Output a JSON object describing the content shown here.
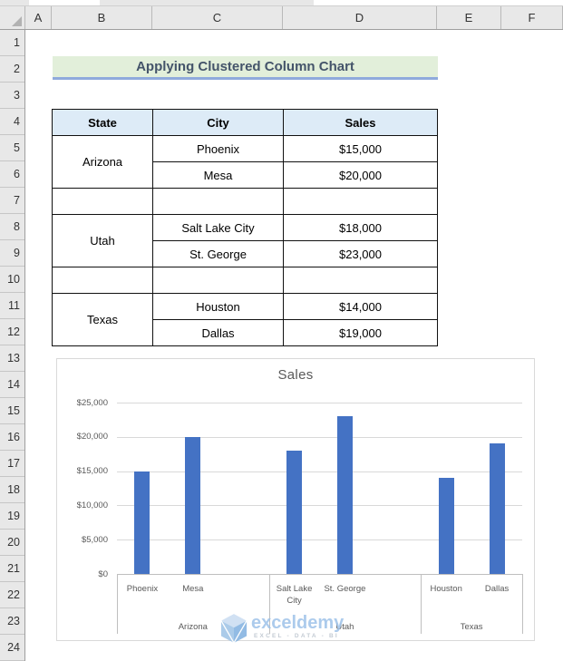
{
  "spreadsheet": {
    "column_headers": [
      "A",
      "B",
      "C",
      "D",
      "E",
      "F"
    ],
    "row_numbers": [
      "1",
      "2",
      "3",
      "4",
      "5",
      "6",
      "7",
      "8",
      "9",
      "10",
      "11",
      "12",
      "13",
      "14",
      "15",
      "16",
      "17",
      "18",
      "19",
      "20",
      "21",
      "22",
      "23",
      "24"
    ]
  },
  "banner": {
    "title": "Applying Clustered Column Chart",
    "fill_color": "#E2EFDA",
    "text_color": "#44546A",
    "underline_color": "#8FAADC"
  },
  "table": {
    "headers": {
      "state": "State",
      "city": "City",
      "sales": "Sales"
    },
    "header_fill": "#DDEBF7",
    "groups": [
      {
        "state": "Arizona",
        "rows": [
          {
            "city": "Phoenix",
            "sales": "$15,000"
          },
          {
            "city": "Mesa",
            "sales": "$20,000"
          }
        ]
      },
      {
        "state": "Utah",
        "rows": [
          {
            "city": "Salt Lake City",
            "sales": "$18,000"
          },
          {
            "city": "St. George",
            "sales": "$23,000"
          }
        ]
      },
      {
        "state": "Texas",
        "rows": [
          {
            "city": "Houston",
            "sales": "$14,000"
          },
          {
            "city": "Dallas",
            "sales": "$19,000"
          }
        ]
      }
    ]
  },
  "chart_data": {
    "type": "bar",
    "title": "Sales",
    "categories": [
      "Phoenix",
      "Mesa",
      "Salt Lake City",
      "St. George",
      "Houston",
      "Dallas"
    ],
    "category_groups": [
      {
        "state": "Arizona",
        "cities": [
          "Phoenix",
          "Mesa"
        ],
        "values": [
          15000,
          20000
        ]
      },
      {
        "state": "Utah",
        "cities": [
          "Salt Lake City",
          "St. George"
        ],
        "values": [
          18000,
          23000
        ]
      },
      {
        "state": "Texas",
        "cities": [
          "Houston",
          "Dallas"
        ],
        "values": [
          14000,
          19000
        ]
      }
    ],
    "series": [
      {
        "name": "Sales",
        "values": [
          15000,
          20000,
          18000,
          23000,
          14000,
          19000
        ]
      }
    ],
    "ylim": [
      0,
      25000
    ],
    "ytick_step": 5000,
    "ytick_labels": [
      "$0",
      "$5,000",
      "$10,000",
      "$15,000",
      "$20,000",
      "$25,000"
    ],
    "bar_color": "#4472C4",
    "gridlines": true,
    "legend": "none"
  },
  "watermark": {
    "brand": "exceldemy",
    "tagline": "EXCEL - DATA - BI"
  }
}
